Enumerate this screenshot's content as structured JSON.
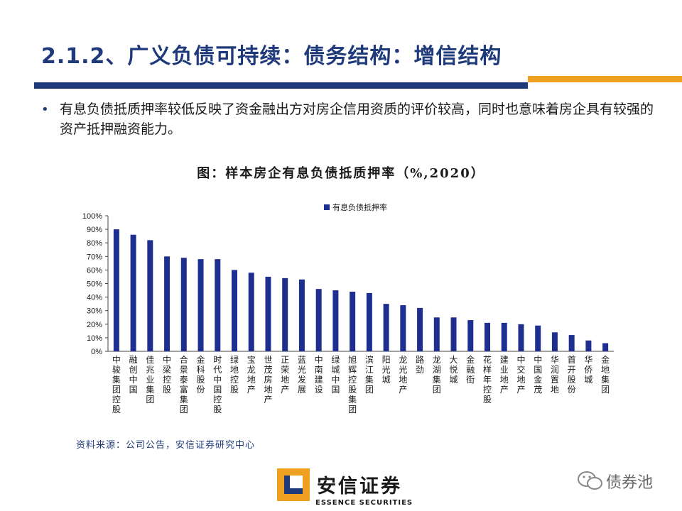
{
  "header": {
    "title": "2.1.2、广义负债可持续：债务结构：增信结构"
  },
  "colors": {
    "navy": "#1f3a7a",
    "orange": "#f0a020",
    "bar": "#1f2f8f"
  },
  "bullet": {
    "symbol": "•",
    "text": "有息负债抵质押率较低反映了资金融出方对房企信用资质的评价较高，同时也意味着房企具有较强的资产抵押融资能力。"
  },
  "chart_title": "图：样本房企有息负债抵质押率（%,2020）",
  "source": "资料来源：公司公告，安信证券研究中心",
  "logo": {
    "name": "安信证券",
    "sub": "ESSENCE SECURITIES"
  },
  "watermark": {
    "text": "债券池",
    "icon": "wechat-icon"
  },
  "chart_data": {
    "type": "bar",
    "title": "图：样本房企有息负债抵质押率（%,2020）",
    "legend": "有息负债抵押率",
    "legend_position": "top-center",
    "xlabel": "",
    "ylabel": "",
    "ylim": [
      0,
      100
    ],
    "yticks": [
      "0%",
      "10%",
      "20%",
      "30%",
      "40%",
      "50%",
      "60%",
      "70%",
      "80%",
      "90%",
      "100%"
    ],
    "categories": [
      "中骏集团控股",
      "融创中国",
      "佳兆业集团",
      "中梁控股",
      "合景泰富集团",
      "金科股份",
      "时代中国控股",
      "绿地控股",
      "宝龙地产",
      "世茂房地产",
      "正荣地产",
      "蓝光发展",
      "中南建设",
      "绿城中国",
      "旭辉控股集团",
      "滨江集团",
      "阳光城",
      "龙光地产",
      "路劲",
      "龙湖集团",
      "大悦城",
      "金融街",
      "花样年控股",
      "建业地产",
      "中交地产",
      "中国金茂",
      "华润置地",
      "首开股份",
      "华侨城",
      "金地集团"
    ],
    "values": [
      90,
      86,
      82,
      70,
      69,
      68,
      68,
      60,
      58,
      55,
      54,
      53,
      46,
      45,
      44,
      43,
      35,
      34,
      32,
      25,
      25,
      23,
      21,
      21,
      20,
      19,
      14,
      12,
      8,
      6
    ]
  }
}
